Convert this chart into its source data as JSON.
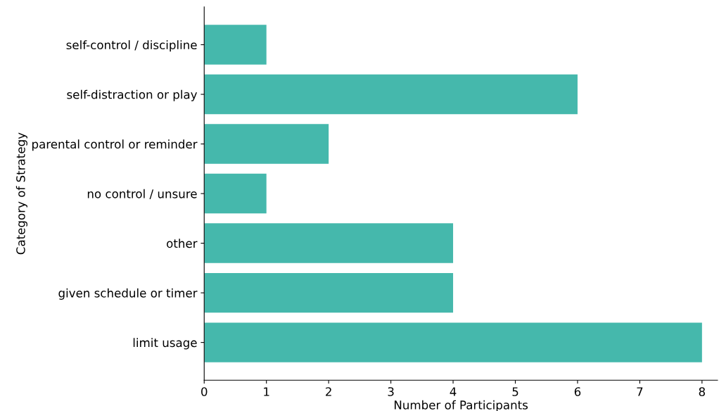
{
  "chart_data": {
    "type": "bar",
    "orientation": "horizontal",
    "xlabel": "Number of Participants",
    "ylabel": "Category of Strategy",
    "categories": [
      "self-control / discipline",
      "self-distraction or play",
      "parental control or reminder",
      "no control / unsure",
      "other",
      "given schedule or timer",
      "limit usage"
    ],
    "values": [
      1,
      6,
      2,
      1,
      4,
      4,
      8
    ],
    "color": "#45b8ac",
    "xlim": [
      0,
      8.25
    ],
    "xticks": [
      0,
      1,
      2,
      3,
      4,
      5,
      6,
      7,
      8
    ],
    "grid": false
  }
}
